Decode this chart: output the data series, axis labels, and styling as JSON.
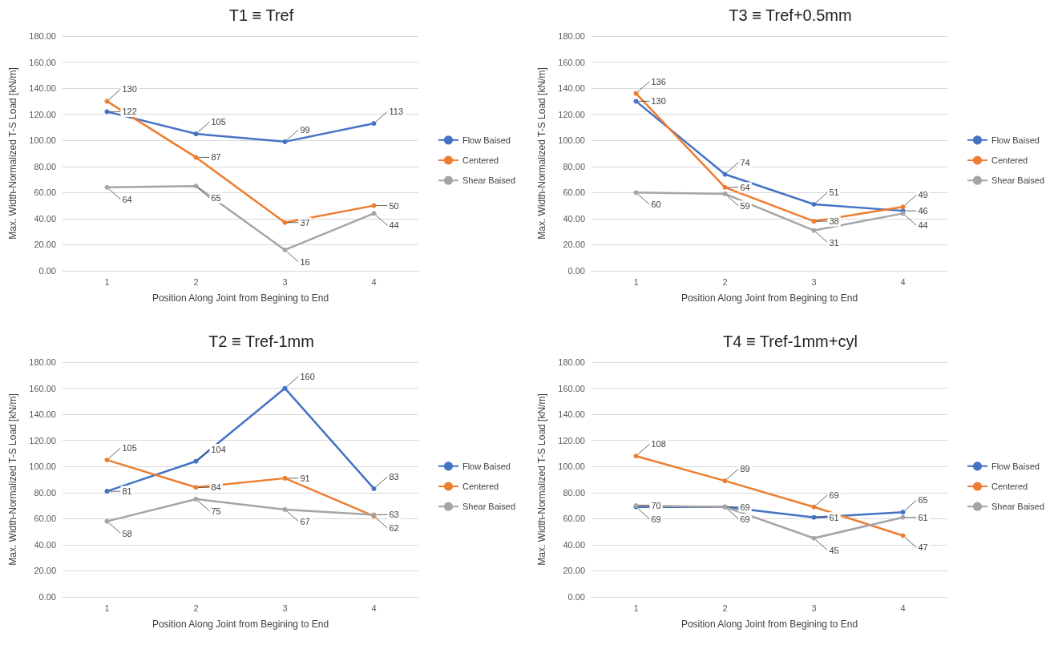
{
  "chart_data": [
    {
      "type": "line",
      "title": "T1 ≡ Tref",
      "xlabel": "Position Along Joint from Begining to End",
      "ylabel": "Max. Width-Normalized T-S Load [kN/m]",
      "categories": [
        "1",
        "2",
        "3",
        "4"
      ],
      "ylim": [
        0,
        180
      ],
      "yticks": [
        {
          "value": 0,
          "label": "0.00"
        },
        {
          "value": 20,
          "label": "20.00"
        },
        {
          "value": 40,
          "label": "40.00"
        },
        {
          "value": 60,
          "label": "60.00"
        },
        {
          "value": 80,
          "label": "80.00"
        },
        {
          "value": 100,
          "label": "100.00"
        },
        {
          "value": 120,
          "label": "120.00"
        },
        {
          "value": 140,
          "label": "140.00"
        },
        {
          "value": 160,
          "label": "160.00"
        },
        {
          "value": 180,
          "label": "180.00"
        }
      ],
      "grid": "y",
      "legend": "right",
      "marker": "circle",
      "data_labels": true,
      "series": [
        {
          "name": "Flow Baised",
          "color": "#4472c4",
          "values": [
            122,
            105,
            99,
            113
          ]
        },
        {
          "name": "Centered",
          "color": "#ed7d31",
          "values": [
            130,
            87,
            37,
            50
          ]
        },
        {
          "name": "Shear Baised",
          "color": "#a5a5a5",
          "values": [
            64,
            65,
            16,
            44
          ]
        }
      ]
    },
    {
      "type": "line",
      "title": "T3 ≡ Tref+0.5mm",
      "xlabel": "Position Along Joint from Begining to End",
      "ylabel": "Max. Width-Normalized T-S Load [kN/m]",
      "categories": [
        "1",
        "2",
        "3",
        "4"
      ],
      "ylim": [
        0,
        180
      ],
      "yticks": [
        {
          "value": 0,
          "label": "0.00"
        },
        {
          "value": 20,
          "label": "20.00"
        },
        {
          "value": 40,
          "label": "40.00"
        },
        {
          "value": 60,
          "label": "60.00"
        },
        {
          "value": 80,
          "label": "80.00"
        },
        {
          "value": 100,
          "label": "100.00"
        },
        {
          "value": 120,
          "label": "120.00"
        },
        {
          "value": 140,
          "label": "140.00"
        },
        {
          "value": 160,
          "label": "160.00"
        },
        {
          "value": 180,
          "label": "180.00"
        }
      ],
      "grid": "y",
      "legend": "right",
      "marker": "circle",
      "data_labels": true,
      "series": [
        {
          "name": "Flow Baised",
          "color": "#4472c4",
          "values": [
            130,
            74,
            51,
            46
          ]
        },
        {
          "name": "Centered",
          "color": "#ed7d31",
          "values": [
            136,
            64,
            38,
            49
          ]
        },
        {
          "name": "Shear Baised",
          "color": "#a5a5a5",
          "values": [
            60,
            59,
            31,
            44
          ]
        }
      ]
    },
    {
      "type": "line",
      "title": "T2 ≡ Tref-1mm",
      "xlabel": "Position Along Joint from Begining to End",
      "ylabel": "Max. Width-Normalized T-S Load [kN/m]",
      "categories": [
        "1",
        "2",
        "3",
        "4"
      ],
      "ylim": [
        0,
        180
      ],
      "yticks": [
        {
          "value": 0,
          "label": "0.00"
        },
        {
          "value": 20,
          "label": "20.00"
        },
        {
          "value": 40,
          "label": "40.00"
        },
        {
          "value": 60,
          "label": "60.00"
        },
        {
          "value": 80,
          "label": "80.00"
        },
        {
          "value": 100,
          "label": "100.00"
        },
        {
          "value": 120,
          "label": "120.00"
        },
        {
          "value": 140,
          "label": "140.00"
        },
        {
          "value": 160,
          "label": "160.00"
        },
        {
          "value": 180,
          "label": "180.00"
        }
      ],
      "grid": "y",
      "legend": "right",
      "marker": "circle",
      "data_labels": true,
      "series": [
        {
          "name": "Flow Baised",
          "color": "#4472c4",
          "values": [
            81,
            104,
            160,
            83
          ]
        },
        {
          "name": "Centered",
          "color": "#ed7d31",
          "values": [
            105,
            84,
            91,
            62
          ]
        },
        {
          "name": "Shear Baised",
          "color": "#a5a5a5",
          "values": [
            58,
            75,
            67,
            63
          ]
        }
      ]
    },
    {
      "type": "line",
      "title": "T4 ≡ Tref-1mm+cyl",
      "xlabel": "Position Along Joint from Begining to End",
      "ylabel": "Max. Width-Normalized T-S Load [kN/m]",
      "categories": [
        "1",
        "2",
        "3",
        "4"
      ],
      "ylim": [
        0,
        180
      ],
      "yticks": [
        {
          "value": 0,
          "label": "0.00"
        },
        {
          "value": 20,
          "label": "20.00"
        },
        {
          "value": 40,
          "label": "40.00"
        },
        {
          "value": 60,
          "label": "60.00"
        },
        {
          "value": 80,
          "label": "80.00"
        },
        {
          "value": 100,
          "label": "100.00"
        },
        {
          "value": 120,
          "label": "120.00"
        },
        {
          "value": 140,
          "label": "140.00"
        },
        {
          "value": 160,
          "label": "160.00"
        },
        {
          "value": 180,
          "label": "180.00"
        }
      ],
      "grid": "y",
      "legend": "right",
      "marker": "circle",
      "data_labels": true,
      "series": [
        {
          "name": "Flow Baised",
          "color": "#4472c4",
          "values": [
            69,
            69,
            61,
            65
          ]
        },
        {
          "name": "Centered",
          "color": "#ed7d31",
          "values": [
            108,
            89,
            69,
            47
          ]
        },
        {
          "name": "Shear Baised",
          "color": "#a5a5a5",
          "values": [
            70,
            69,
            45,
            61
          ]
        }
      ]
    }
  ]
}
